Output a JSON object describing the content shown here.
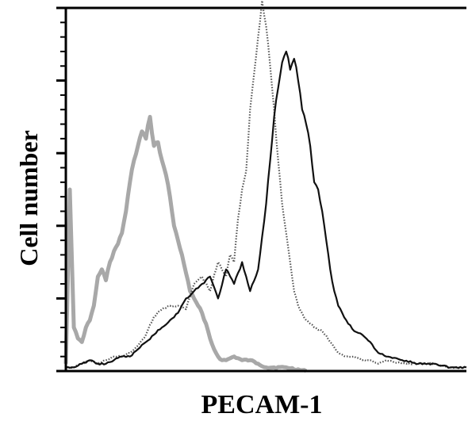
{
  "chart_data": {
    "type": "line",
    "xlabel": "PECAM-1",
    "ylabel": "Cell number",
    "xlim": [
      0,
      100
    ],
    "ylim": [
      0,
      100
    ],
    "x_scale": "log",
    "x_ticks_labeled": false,
    "y_ticks_labeled": false,
    "grid": false,
    "legend": "none",
    "series": [
      {
        "style": "solid",
        "color": "#a8a8a8",
        "x": [
          0,
          1,
          2,
          3,
          4,
          5,
          6,
          7,
          8,
          9,
          10,
          11,
          12,
          13,
          14,
          15,
          16,
          17,
          18,
          19,
          20,
          21,
          22,
          23,
          24,
          25,
          26,
          27,
          28,
          29,
          30,
          31,
          32,
          33,
          34,
          35,
          36,
          37,
          38,
          39,
          40,
          42,
          44,
          46,
          48,
          50,
          55,
          60
        ],
        "values": [
          2,
          50,
          12,
          9,
          8,
          12,
          14,
          18,
          26,
          28,
          25,
          30,
          33,
          35,
          38,
          44,
          52,
          58,
          62,
          66,
          64,
          70,
          62,
          63,
          58,
          54,
          48,
          40,
          36,
          32,
          27,
          22,
          20,
          18,
          16,
          13,
          9,
          6,
          4,
          3,
          3,
          4,
          3,
          3,
          2,
          1,
          1,
          0
        ]
      },
      {
        "style": "dotted",
        "color": "#555555",
        "x": [
          0,
          2,
          4,
          6,
          8,
          10,
          12,
          14,
          16,
          18,
          20,
          22,
          24,
          26,
          28,
          30,
          32,
          34,
          36,
          38,
          40,
          41,
          42,
          43,
          44,
          45,
          46,
          47,
          48,
          49,
          50,
          51,
          52,
          53,
          54,
          55,
          56,
          57,
          58,
          60,
          62,
          64,
          66,
          68,
          70,
          72,
          74,
          76,
          78,
          80,
          84,
          88,
          92,
          96,
          100
        ],
        "values": [
          1,
          1,
          2,
          3,
          2,
          3,
          4,
          4,
          5,
          7,
          10,
          15,
          17,
          18,
          18,
          17,
          24,
          26,
          22,
          30,
          26,
          32,
          30,
          42,
          50,
          55,
          72,
          82,
          92,
          102,
          95,
          84,
          72,
          58,
          46,
          38,
          30,
          22,
          18,
          14,
          12,
          11,
          8,
          5,
          4,
          4,
          3,
          3,
          2,
          3,
          2,
          2,
          2,
          1,
          1
        ]
      },
      {
        "style": "solid",
        "color": "#111111",
        "x": [
          0,
          2,
          4,
          6,
          8,
          10,
          12,
          14,
          16,
          18,
          20,
          22,
          24,
          26,
          28,
          30,
          32,
          34,
          36,
          38,
          40,
          42,
          44,
          46,
          48,
          50,
          51,
          52,
          53,
          54,
          55,
          56,
          57,
          58,
          59,
          60,
          61,
          62,
          63,
          64,
          65,
          66,
          67,
          68,
          70,
          72,
          74,
          76,
          78,
          80,
          84,
          88,
          92,
          96,
          100
        ],
        "values": [
          1,
          1,
          2,
          3,
          2,
          2,
          3,
          4,
          4,
          6,
          8,
          10,
          12,
          14,
          16,
          20,
          22,
          24,
          26,
          20,
          28,
          24,
          30,
          22,
          28,
          46,
          58,
          70,
          78,
          85,
          88,
          83,
          86,
          80,
          72,
          68,
          62,
          52,
          50,
          44,
          36,
          28,
          22,
          18,
          14,
          11,
          10,
          8,
          5,
          4,
          3,
          2,
          2,
          1,
          1
        ]
      }
    ]
  }
}
